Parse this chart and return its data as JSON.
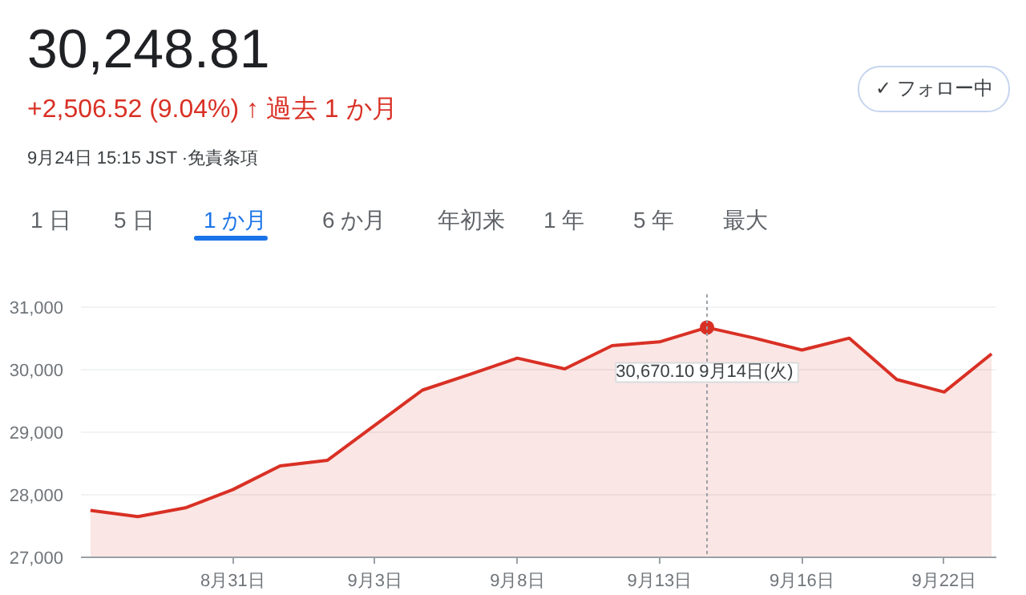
{
  "chart_data": {
    "type": "area",
    "title": "30,248.81",
    "subtitle": "+2,506.52 (9.04%) ↑ 過去 1 か月",
    "annotations": [
      "9月24日 15:15 JST ·免責条項",
      "✓ フォロー中",
      "1 日",
      "5 日",
      "1 か月",
      "6 か月",
      "年初来",
      "1 年",
      "5 年",
      "最大",
      {
        "text": "30,670.10  9月14日(火)",
        "y": 30670.1
      }
    ],
    "categories": [
      null,
      null,
      null,
      "8月31日",
      null,
      null,
      "9月3日",
      null,
      null,
      "9月8日",
      null,
      null,
      "9月13日",
      null,
      null,
      "9月16日",
      null,
      null,
      "9月22日",
      null
    ],
    "series": [
      {
        "color": "#d93025",
        "values": [
          27750,
          27650,
          27790,
          28080,
          28460,
          28550,
          29110,
          29670,
          29920,
          30180,
          30010,
          30380,
          30440,
          30670.1,
          30500,
          30310,
          30500,
          29840,
          29640,
          30250
        ]
      }
    ],
    "ylim": [
      27000,
      31200
    ],
    "yticks": [
      {
        "value": 27000,
        "label": "27,000"
      },
      {
        "value": 28000,
        "label": "28,000"
      },
      {
        "value": 29000,
        "label": "29,000"
      },
      {
        "value": 30000,
        "label": "30,000"
      },
      {
        "value": 31000,
        "label": "31,000"
      }
    ],
    "grid": "y"
  }
}
